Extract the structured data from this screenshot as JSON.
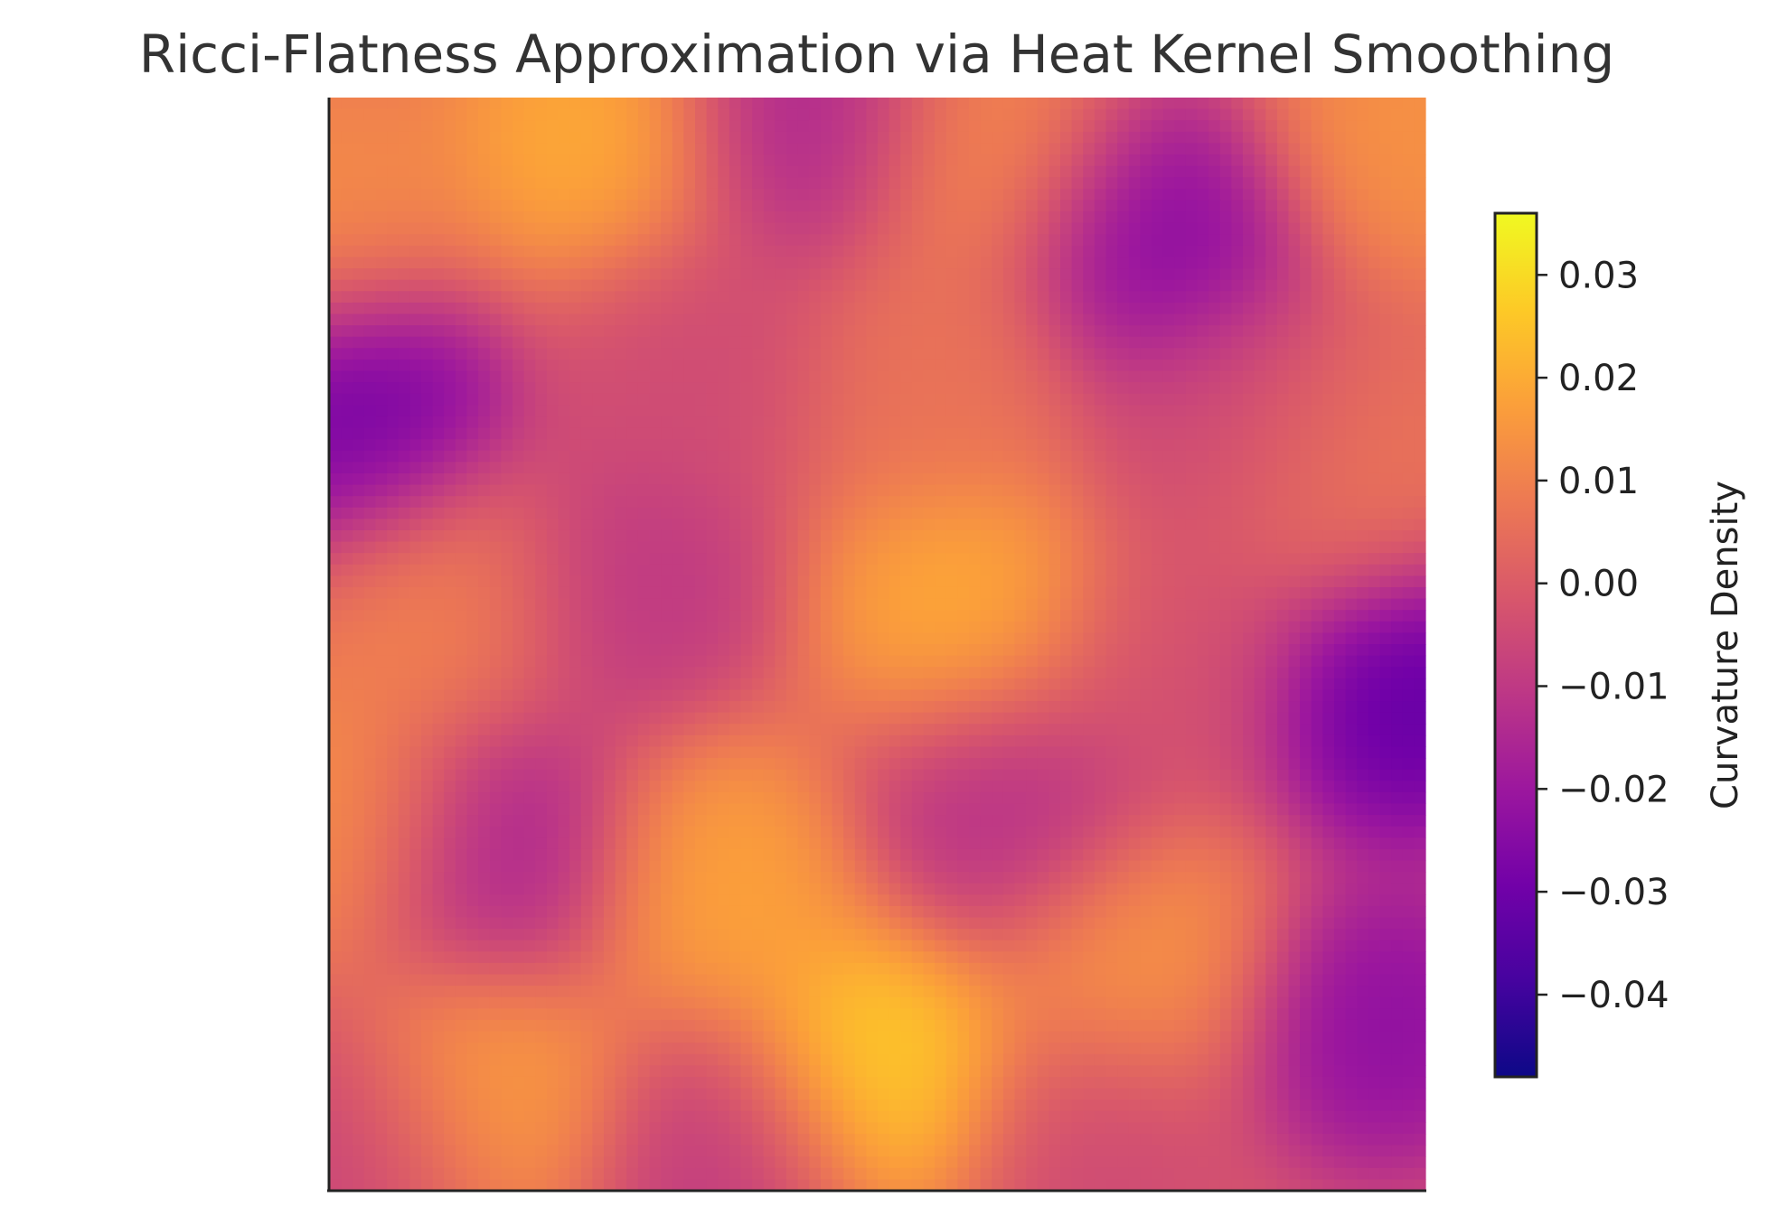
{
  "chart_data": {
    "type": "heatmap",
    "title": "Ricci-Flatness Approximation via Heat Kernel Smoothing",
    "xlabel": "",
    "ylabel": "",
    "colormap": "plasma",
    "colormap_stops": [
      "#0d0887",
      "#46039f",
      "#7201a8",
      "#9c179e",
      "#bd3786",
      "#d8576b",
      "#ed7953",
      "#fb9f3a",
      "#fdca26",
      "#f0f921"
    ],
    "value_range": [
      -0.048,
      0.036
    ],
    "grid": false,
    "grid_size": 96,
    "hotspots": [
      {
        "x": 0.24,
        "y": 0.04,
        "value": 0.03
      },
      {
        "x": 0.6,
        "y": 0.05,
        "value": 0.018
      },
      {
        "x": 0.44,
        "y": 0.02,
        "value": -0.03
      },
      {
        "x": 0.75,
        "y": 0.13,
        "value": -0.045
      },
      {
        "x": 0.0,
        "y": 0.1,
        "value": 0.017
      },
      {
        "x": 0.99,
        "y": 0.03,
        "value": 0.02
      },
      {
        "x": 0.03,
        "y": 0.29,
        "value": -0.052
      },
      {
        "x": 0.33,
        "y": 0.24,
        "value": -0.011
      },
      {
        "x": 0.56,
        "y": 0.26,
        "value": 0.007
      },
      {
        "x": 0.27,
        "y": 0.45,
        "value": -0.021
      },
      {
        "x": 0.58,
        "y": 0.47,
        "value": 0.03
      },
      {
        "x": 0.11,
        "y": 0.46,
        "value": 0.014
      },
      {
        "x": 0.98,
        "y": 0.55,
        "value": -0.058
      },
      {
        "x": 0.77,
        "y": 0.52,
        "value": -0.008
      },
      {
        "x": 0.93,
        "y": 0.35,
        "value": 0.009
      },
      {
        "x": 0.01,
        "y": 0.66,
        "value": 0.019
      },
      {
        "x": 0.16,
        "y": 0.69,
        "value": -0.032
      },
      {
        "x": 0.35,
        "y": 0.72,
        "value": 0.027
      },
      {
        "x": 0.62,
        "y": 0.65,
        "value": -0.025
      },
      {
        "x": 0.74,
        "y": 0.79,
        "value": 0.021
      },
      {
        "x": 0.5,
        "y": 0.89,
        "value": 0.043
      },
      {
        "x": 0.96,
        "y": 0.85,
        "value": -0.042
      },
      {
        "x": 0.15,
        "y": 0.91,
        "value": 0.025
      },
      {
        "x": 0.36,
        "y": 0.97,
        "value": -0.02
      },
      {
        "x": 0.7,
        "y": 0.96,
        "value": -0.012
      },
      {
        "x": 0.02,
        "y": 0.97,
        "value": -0.015
      },
      {
        "x": 0.82,
        "y": 0.3,
        "value": -0.012
      }
    ],
    "colorbar": {
      "label": "Curvature Density",
      "ticks": [
        0.03,
        0.02,
        0.01,
        0.0,
        -0.01,
        -0.02,
        -0.03,
        -0.04
      ],
      "tick_labels": [
        "0.03",
        "0.02",
        "0.01",
        "0.00",
        "−0.01",
        "−0.02",
        "−0.03",
        "−0.04"
      ]
    }
  }
}
